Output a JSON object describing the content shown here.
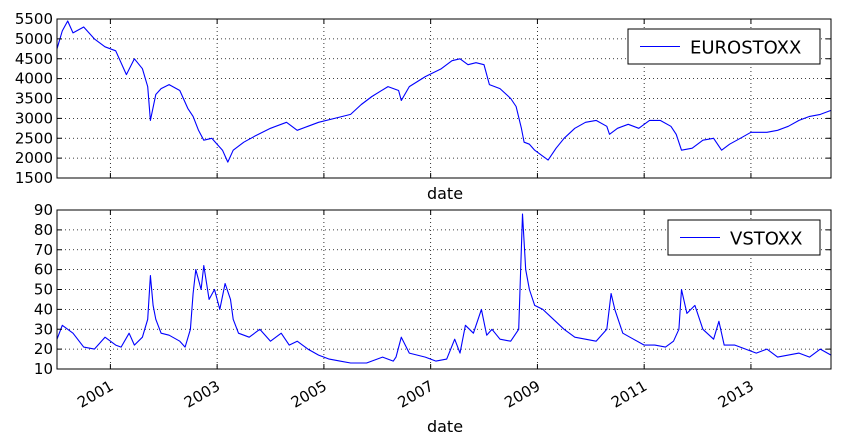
{
  "chart_data": [
    {
      "type": "line",
      "xlabel": "date",
      "ylabel": "",
      "xlim": [
        2000.0,
        2014.5
      ],
      "ylim": [
        1500,
        5500
      ],
      "yticks": [
        1500,
        2000,
        2500,
        3000,
        3500,
        4000,
        4500,
        5000,
        5500
      ],
      "xticks": [
        2001,
        2003,
        2005,
        2007,
        2009,
        2011,
        2013
      ],
      "xtick_labels_shown": false,
      "grid": true,
      "legend": "top-right",
      "color": "#0000ff",
      "series": [
        {
          "name": "EUROSTOXX",
          "x": [
            2000.0,
            2000.1,
            2000.2,
            2000.3,
            2000.5,
            2000.7,
            2000.9,
            2001.1,
            2001.3,
            2001.45,
            2001.6,
            2001.7,
            2001.75,
            2001.85,
            2001.95,
            2002.1,
            2002.3,
            2002.45,
            2002.55,
            2002.65,
            2002.75,
            2002.9,
            2003.0,
            2003.1,
            2003.2,
            2003.3,
            2003.5,
            2003.7,
            2004.0,
            2004.3,
            2004.5,
            2004.7,
            2004.9,
            2005.2,
            2005.5,
            2005.7,
            2005.9,
            2006.2,
            2006.4,
            2006.45,
            2006.6,
            2006.9,
            2007.2,
            2007.4,
            2007.55,
            2007.7,
            2007.85,
            2008.0,
            2008.1,
            2008.3,
            2008.5,
            2008.6,
            2008.7,
            2008.75,
            2008.85,
            2008.95,
            2009.05,
            2009.2,
            2009.35,
            2009.5,
            2009.7,
            2009.9,
            2010.1,
            2010.3,
            2010.35,
            2010.5,
            2010.7,
            2010.9,
            2011.1,
            2011.3,
            2011.5,
            2011.6,
            2011.7,
            2011.9,
            2012.1,
            2012.3,
            2012.45,
            2012.6,
            2012.8,
            2013.0,
            2013.3,
            2013.5,
            2013.7,
            2013.9,
            2014.1,
            2014.3,
            2014.5
          ],
          "values": [
            4750,
            5200,
            5450,
            5150,
            5300,
            5000,
            4800,
            4700,
            4100,
            4500,
            4250,
            3800,
            2950,
            3600,
            3750,
            3850,
            3700,
            3250,
            3050,
            2700,
            2450,
            2500,
            2350,
            2200,
            1900,
            2200,
            2400,
            2550,
            2750,
            2900,
            2700,
            2800,
            2900,
            3000,
            3100,
            3350,
            3550,
            3800,
            3700,
            3450,
            3800,
            4050,
            4250,
            4450,
            4500,
            4350,
            4400,
            4350,
            3850,
            3750,
            3500,
            3300,
            2750,
            2400,
            2350,
            2200,
            2100,
            1950,
            2250,
            2500,
            2750,
            2900,
            2950,
            2800,
            2600,
            2750,
            2850,
            2750,
            2950,
            2950,
            2800,
            2600,
            2200,
            2250,
            2450,
            2500,
            2200,
            2350,
            2500,
            2650,
            2650,
            2700,
            2800,
            2950,
            3050,
            3100,
            3200
          ]
        }
      ]
    },
    {
      "type": "line",
      "xlabel": "date",
      "ylabel": "",
      "xlim": [
        2000.0,
        2014.5
      ],
      "ylim": [
        10,
        90
      ],
      "yticks": [
        10,
        20,
        30,
        40,
        50,
        60,
        70,
        80,
        90
      ],
      "xticks": [
        2001,
        2003,
        2005,
        2007,
        2009,
        2011,
        2013
      ],
      "xtick_labels": [
        "2001",
        "2003",
        "2005",
        "2007",
        "2009",
        "2011",
        "2013"
      ],
      "grid": true,
      "legend": "top-right",
      "color": "#0000ff",
      "series": [
        {
          "name": "VSTOXX",
          "x": [
            2000.0,
            2000.1,
            2000.3,
            2000.5,
            2000.7,
            2000.9,
            2001.1,
            2001.2,
            2001.35,
            2001.45,
            2001.6,
            2001.7,
            2001.75,
            2001.8,
            2001.85,
            2001.95,
            2002.1,
            2002.3,
            2002.4,
            2002.5,
            2002.55,
            2002.6,
            2002.7,
            2002.75,
            2002.85,
            2002.95,
            2003.05,
            2003.15,
            2003.25,
            2003.3,
            2003.4,
            2003.6,
            2003.8,
            2004.0,
            2004.2,
            2004.35,
            2004.5,
            2004.7,
            2004.9,
            2005.1,
            2005.3,
            2005.5,
            2005.8,
            2006.1,
            2006.3,
            2006.35,
            2006.45,
            2006.6,
            2006.9,
            2007.1,
            2007.3,
            2007.45,
            2007.55,
            2007.65,
            2007.8,
            2007.95,
            2008.05,
            2008.15,
            2008.3,
            2008.5,
            2008.65,
            2008.72,
            2008.78,
            2008.85,
            2008.95,
            2009.1,
            2009.3,
            2009.5,
            2009.7,
            2009.9,
            2010.1,
            2010.3,
            2010.38,
            2010.45,
            2010.6,
            2010.8,
            2011.0,
            2011.2,
            2011.4,
            2011.55,
            2011.65,
            2011.7,
            2011.8,
            2011.95,
            2012.1,
            2012.3,
            2012.4,
            2012.5,
            2012.7,
            2012.9,
            2013.1,
            2013.3,
            2013.5,
            2013.7,
            2013.9,
            2014.1,
            2014.3,
            2014.5
          ],
          "values": [
            25,
            32,
            28,
            21,
            20,
            26,
            22,
            21,
            28,
            22,
            26,
            35,
            57,
            42,
            35,
            28,
            27,
            24,
            21,
            30,
            48,
            60,
            50,
            62,
            45,
            50,
            40,
            53,
            45,
            35,
            28,
            26,
            30,
            24,
            28,
            22,
            24,
            20,
            17,
            15,
            14,
            13,
            13,
            16,
            14,
            16,
            26,
            18,
            16,
            14,
            15,
            25,
            18,
            32,
            28,
            40,
            27,
            30,
            25,
            24,
            30,
            88,
            60,
            50,
            42,
            40,
            35,
            30,
            26,
            25,
            24,
            30,
            48,
            40,
            28,
            25,
            22,
            22,
            21,
            24,
            30,
            50,
            38,
            42,
            30,
            25,
            34,
            22,
            22,
            20,
            18,
            20,
            16,
            17,
            18,
            16,
            20,
            17
          ]
        }
      ]
    }
  ]
}
